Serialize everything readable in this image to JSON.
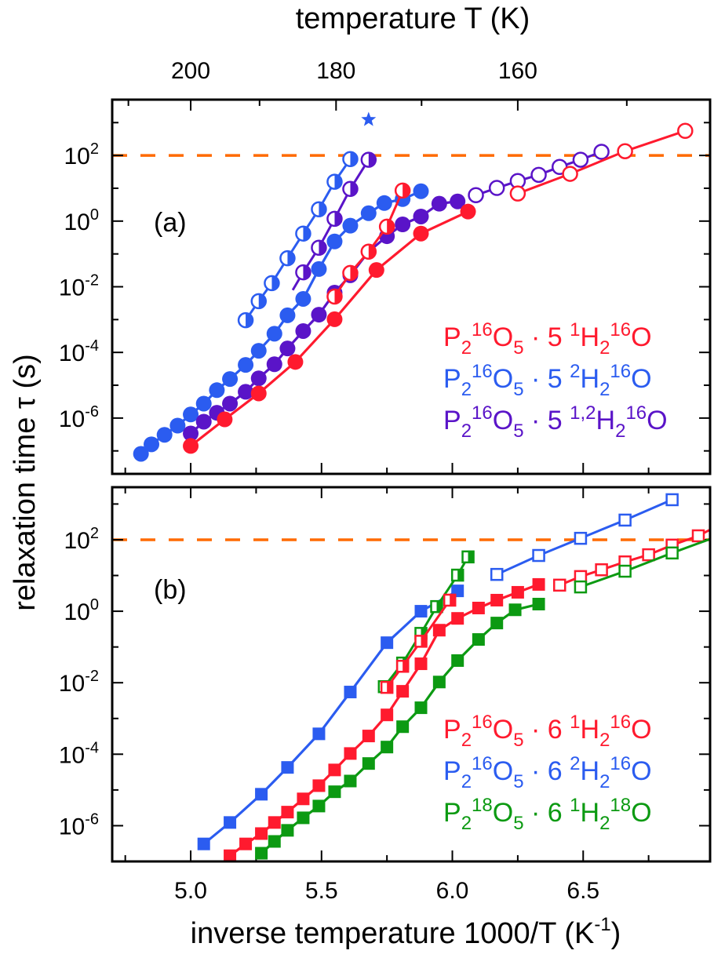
{
  "figure": {
    "top_axis_title": "temperature T (K)",
    "bottom_axis_title": "inverse temperature 1000/T (K",
    "bottom_axis_title_sup": "-1",
    "bottom_axis_title_end": ")",
    "y_axis_title": "relaxation time τ (s)"
  },
  "colors": {
    "red": "#ff1a2e",
    "blue": "#2b5cf0",
    "purple": "#5a14c8",
    "green": "#0c9a12",
    "orange_dashed": "#ff6a00"
  },
  "chart_data": [
    {
      "type": "scatter",
      "panel_label": "(a)",
      "xlabel": "inverse temperature 1000/T (K^-1)",
      "ylabel": "relaxation time τ (s)",
      "y_scale": "log10",
      "xlim": [
        4.7,
        6.985
      ],
      "ylim_log10": [
        -7.7,
        3.7
      ],
      "top_axis": {
        "label": "temperature T (K)",
        "major_ticks_K": [
          200,
          180,
          160
        ],
        "minor_ticks_K": [
          210,
          190,
          170,
          150
        ]
      },
      "x_ticks": [
        "5.0",
        "5.5",
        "6.0",
        "6.5"
      ],
      "y_ticks_log10": [
        2,
        0,
        -2,
        -4,
        -6
      ],
      "y_tick_labels": [
        {
          "base": "10",
          "exp": "2"
        },
        {
          "base": "10",
          "exp": "0"
        },
        {
          "base": "10",
          "exp": "-2"
        },
        {
          "base": "10",
          "exp": "-4"
        },
        {
          "base": "10",
          "exp": "-6"
        }
      ],
      "reference_line": {
        "y": 100,
        "style": "dashed",
        "color": "#ff6a00"
      },
      "legend": {
        "placement": "bottom-right",
        "entries": [
          {
            "color": "red",
            "parts": [
              [
                "P",
                ""
              ],
              [
                "2",
                "sub"
              ],
              [
                "16",
                "sup"
              ],
              [
                "O",
                ""
              ],
              [
                "5",
                "sub"
              ],
              [
                " · 5 ",
                ""
              ],
              [
                "1",
                "sup"
              ],
              [
                "H",
                ""
              ],
              [
                "2",
                "sub"
              ],
              [
                "16",
                "sup"
              ],
              [
                "O",
                ""
              ]
            ]
          },
          {
            "color": "blue",
            "parts": [
              [
                "P",
                ""
              ],
              [
                "2",
                "sub"
              ],
              [
                "16",
                "sup"
              ],
              [
                "O",
                ""
              ],
              [
                "5",
                "sub"
              ],
              [
                " · 5 ",
                ""
              ],
              [
                "2",
                "sup"
              ],
              [
                "H",
                ""
              ],
              [
                "2",
                "sub"
              ],
              [
                "16",
                "sup"
              ],
              [
                "O",
                ""
              ]
            ]
          },
          {
            "color": "purple",
            "parts": [
              [
                "P",
                ""
              ],
              [
                "2",
                "sub"
              ],
              [
                "16",
                "sup"
              ],
              [
                "O",
                ""
              ],
              [
                "5",
                "sub"
              ],
              [
                " · 5 ",
                ""
              ],
              [
                "1,2",
                "sup"
              ],
              [
                "H",
                ""
              ],
              [
                "2",
                "sub"
              ],
              [
                "16",
                "sup"
              ],
              [
                "O",
                ""
              ]
            ]
          }
        ]
      },
      "series": [
        {
          "name": "P2 16O5 · 5 2H2 16O (filled)",
          "color": "blue",
          "marker": "circle",
          "fill": "full",
          "x": [
            4.81,
            4.85,
            4.9,
            4.95,
            5.0,
            5.05,
            5.1,
            5.15,
            5.21,
            5.26,
            5.32,
            5.37,
            5.43,
            5.49,
            5.55,
            5.61,
            5.68,
            5.74,
            5.81,
            5.88
          ],
          "log_tau": [
            -7.09,
            -6.8,
            -6.51,
            -6.23,
            -5.89,
            -5.56,
            -5.15,
            -4.81,
            -4.38,
            -3.95,
            -3.43,
            -2.87,
            -2.37,
            -1.46,
            -0.62,
            -0.14,
            0.24,
            0.55,
            0.67,
            0.91
          ]
        },
        {
          "name": "P2 16O5 · 5 1,2H2 16O (filled)",
          "color": "purple",
          "marker": "circle",
          "fill": "full",
          "x": [
            5.0,
            5.05,
            5.1,
            5.15,
            5.21,
            5.26,
            5.32,
            5.37,
            5.43,
            5.49,
            5.55,
            5.61,
            5.68,
            5.75,
            5.81,
            5.88,
            5.95,
            6.02
          ],
          "log_tau": [
            -6.47,
            -6.11,
            -5.84,
            -5.56,
            -5.2,
            -4.79,
            -4.36,
            -3.88,
            -3.35,
            -2.85,
            -2.18,
            -1.65,
            -0.93,
            -0.46,
            -0.1,
            0.14,
            0.53,
            0.6
          ]
        },
        {
          "name": "P2 16O5 · 5 1H2 16O (filled)",
          "color": "red",
          "marker": "circle",
          "fill": "full",
          "x": [
            5.0,
            5.13,
            5.26,
            5.4,
            5.55,
            5.71,
            5.88,
            6.06
          ],
          "log_tau": [
            -6.85,
            -6.04,
            -5.25,
            -4.29,
            -2.99,
            -1.49,
            -0.38,
            0.29
          ]
        },
        {
          "name": "P2 16O5 · 5 2H2 16O (half)",
          "color": "blue",
          "marker": "circle",
          "fill": "half",
          "x": [
            5.21,
            5.26,
            5.31,
            5.37,
            5.43,
            5.49,
            5.55,
            5.61
          ],
          "log_tau": [
            -3.02,
            -2.44,
            -1.89,
            -1.13,
            -0.38,
            0.36,
            1.2,
            1.89
          ]
        },
        {
          "name": "P2 16O5 · 5 1,2H2 16O (half)",
          "color": "purple",
          "marker": "circle",
          "fill": "half",
          "x": [
            5.43,
            5.49,
            5.55,
            5.61,
            5.68
          ],
          "log_tau": [
            -1.56,
            -0.81,
            0.07,
            0.98,
            1.87
          ],
          "line_extends_to": [
            5.39,
            -2.1
          ]
        },
        {
          "name": "P2 16O5 · 5 1H2 16O (half)",
          "color": "red",
          "marker": "circle",
          "fill": "half",
          "x": [
            5.55,
            5.61,
            5.68,
            5.75,
            5.81
          ],
          "log_tau": [
            -2.3,
            -1.58,
            -0.93,
            -0.17,
            0.93
          ]
        },
        {
          "name": "P2 16O5 · 5 1,2H2 16O (open)",
          "color": "purple",
          "marker": "circle",
          "fill": "none",
          "x": [
            6.09,
            6.17,
            6.25,
            6.33,
            6.41,
            6.49,
            6.57
          ],
          "log_tau": [
            0.79,
            1.01,
            1.22,
            1.41,
            1.65,
            1.87,
            2.11
          ]
        },
        {
          "name": "P2 16O5 · 5 1H2 16O (open)",
          "color": "red",
          "marker": "circle",
          "fill": "none",
          "x": [
            6.25,
            6.45,
            6.66,
            6.89
          ],
          "log_tau": [
            0.84,
            1.44,
            2.13,
            2.75
          ]
        },
        {
          "name": "star",
          "color": "blue",
          "marker": "star",
          "fill": "full",
          "no_line": true,
          "x": [
            5.68
          ],
          "log_tau": [
            3.09
          ]
        }
      ]
    },
    {
      "type": "scatter",
      "panel_label": "(b)",
      "xlabel": "inverse temperature 1000/T (K^-1)",
      "ylabel": "relaxation time τ (s)",
      "y_scale": "log10",
      "xlim": [
        4.7,
        6.985
      ],
      "ylim_log10": [
        -7.0,
        3.47
      ],
      "x_ticks": [
        "5.0",
        "5.5",
        "6.0",
        "6.5"
      ],
      "y_ticks_log10": [
        2,
        0,
        -2,
        -4,
        -6
      ],
      "y_tick_labels": [
        {
          "base": "10",
          "exp": "2"
        },
        {
          "base": "10",
          "exp": "0"
        },
        {
          "base": "10",
          "exp": "-2"
        },
        {
          "base": "10",
          "exp": "-4"
        },
        {
          "base": "10",
          "exp": "-6"
        }
      ],
      "reference_line": {
        "y": 100,
        "style": "dashed",
        "color": "#ff6a00"
      },
      "legend": {
        "placement": "bottom-right",
        "entries": [
          {
            "color": "red",
            "parts": [
              [
                "P",
                ""
              ],
              [
                "2",
                "sub"
              ],
              [
                "16",
                "sup"
              ],
              [
                "O",
                ""
              ],
              [
                "5",
                "sub"
              ],
              [
                " · 6 ",
                ""
              ],
              [
                "1",
                "sup"
              ],
              [
                "H",
                ""
              ],
              [
                "2",
                "sub"
              ],
              [
                "16",
                "sup"
              ],
              [
                "O",
                ""
              ]
            ]
          },
          {
            "color": "blue",
            "parts": [
              [
                "P",
                ""
              ],
              [
                "2",
                "sub"
              ],
              [
                "16",
                "sup"
              ],
              [
                "O",
                ""
              ],
              [
                "5",
                "sub"
              ],
              [
                " · 6 ",
                ""
              ],
              [
                "2",
                "sup"
              ],
              [
                "H",
                ""
              ],
              [
                "2",
                "sub"
              ],
              [
                "16",
                "sup"
              ],
              [
                "O",
                ""
              ]
            ]
          },
          {
            "color": "green",
            "parts": [
              [
                "P",
                ""
              ],
              [
                "2",
                "sub"
              ],
              [
                "18",
                "sup"
              ],
              [
                "O",
                ""
              ],
              [
                "5",
                "sub"
              ],
              [
                " · 6 ",
                ""
              ],
              [
                "1",
                "sup"
              ],
              [
                "H",
                ""
              ],
              [
                "2",
                "sub"
              ],
              [
                "18",
                "sup"
              ],
              [
                "O",
                ""
              ]
            ]
          }
        ]
      },
      "series": [
        {
          "name": "P2 16O5 · 6 2H2 16O (filled)",
          "color": "blue",
          "marker": "square",
          "fill": "full",
          "x": [
            5.05,
            5.15,
            5.27,
            5.37,
            5.49,
            5.61,
            5.75,
            5.88,
            6.02
          ],
          "log_tau": [
            -6.51,
            -5.91,
            -5.12,
            -4.37,
            -3.43,
            -2.26,
            -0.88,
            0.0,
            0.57
          ]
        },
        {
          "name": "P2 16O5 · 6 1H2 16O (filled)",
          "color": "red",
          "marker": "square",
          "fill": "full",
          "x": [
            5.15,
            5.21,
            5.27,
            5.32,
            5.37,
            5.43,
            5.49,
            5.55,
            5.61,
            5.68,
            5.75,
            5.81,
            5.88,
            5.95,
            6.02,
            6.1,
            6.17,
            6.25,
            6.33
          ],
          "log_tau": [
            -6.84,
            -6.51,
            -6.22,
            -5.91,
            -5.62,
            -5.25,
            -4.88,
            -4.44,
            -3.98,
            -3.49,
            -2.9,
            -2.24,
            -1.47,
            -0.53,
            -0.2,
            0.09,
            0.31,
            0.53,
            0.75
          ]
        },
        {
          "name": "P2 18O5 · 6 1H2 18O (filled)",
          "color": "green",
          "marker": "square",
          "fill": "full",
          "x": [
            5.27,
            5.32,
            5.37,
            5.43,
            5.49,
            5.55,
            5.61,
            5.68,
            5.75,
            5.81,
            5.88,
            5.95,
            6.02,
            6.1,
            6.17,
            6.24,
            6.33
          ],
          "log_tau": [
            -6.77,
            -6.44,
            -6.13,
            -5.78,
            -5.45,
            -5.05,
            -4.75,
            -4.26,
            -3.8,
            -3.23,
            -2.7,
            -1.98,
            -1.38,
            -0.79,
            -0.33,
            0.04,
            0.2
          ]
        },
        {
          "name": "P2 18O5 · 6 1H2 18O (half)",
          "color": "green",
          "marker": "square",
          "fill": "half",
          "x": [
            5.74,
            5.81,
            5.88,
            5.94,
            6.02,
            6.06
          ],
          "log_tau": [
            -2.11,
            -1.45,
            -0.62,
            0.13,
            1.01,
            1.52
          ]
        },
        {
          "name": "P2 16O5 · 6 1H2 16O (half)",
          "color": "red",
          "marker": "square",
          "fill": "half",
          "x": [
            5.75,
            5.81,
            5.88,
            5.99
          ],
          "log_tau": [
            -2.13,
            -1.54,
            -0.84,
            0.31
          ]
        },
        {
          "name": "P2 16O5 · 6 2H2 16O (open)",
          "color": "blue",
          "marker": "square",
          "fill": "none",
          "x": [
            6.17,
            6.33,
            6.49,
            6.66,
            6.84
          ],
          "log_tau": [
            1.03,
            1.56,
            2.04,
            2.55,
            3.12
          ]
        },
        {
          "name": "P2 16O5 · 6 1H2 16O (open)",
          "color": "red",
          "marker": "square",
          "fill": "none",
          "x": [
            6.41,
            6.49,
            6.57,
            6.66,
            6.75,
            6.84,
            6.94
          ],
          "log_tau": [
            0.73,
            0.97,
            1.16,
            1.38,
            1.58,
            1.85,
            2.11
          ],
          "line_extends_to": [
            6.985,
            2.28
          ]
        },
        {
          "name": "P2 18O5 · 6 1H2 18O (open)",
          "color": "green",
          "marker": "square",
          "fill": "none",
          "x": [
            6.49,
            6.66,
            6.84
          ],
          "log_tau": [
            0.68,
            1.12,
            1.63
          ],
          "line_extends_to": [
            6.985,
            2.02
          ]
        }
      ]
    }
  ]
}
